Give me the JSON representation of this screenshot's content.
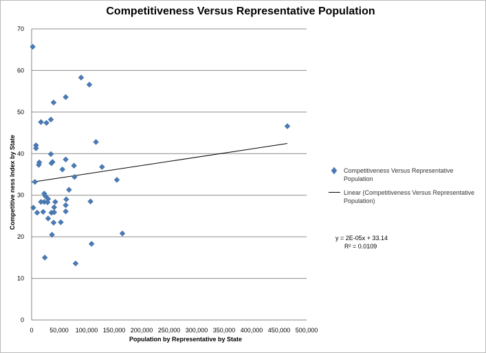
{
  "chart_data": {
    "type": "scatter",
    "title": "Competitiveness Versus Representative Population",
    "xlabel": "Population   by Representative  by State",
    "ylabel": "Competitive ness   Index  by State",
    "xlim": [
      0,
      500000
    ],
    "ylim": [
      0,
      70
    ],
    "x_ticks": [
      "0",
      "50,000",
      "100,000",
      "150,000",
      "200,000",
      "250,000",
      "300,000",
      "350,000",
      "400,000",
      "450,000",
      "500,000"
    ],
    "y_ticks": [
      "0",
      "10",
      "20",
      "30",
      "40",
      "50",
      "60",
      "70"
    ],
    "grid": "horizontal",
    "legend_position": "right",
    "series": [
      {
        "name": "Competitiveness Versus Representative Population",
        "marker": "diamond",
        "color": "#4a7ab5",
        "points": [
          [
            2000,
            65.7
          ],
          [
            90000,
            58.3
          ],
          [
            105000,
            56.6
          ],
          [
            62000,
            53.6
          ],
          [
            40000,
            52.3
          ],
          [
            35000,
            48.2
          ],
          [
            17000,
            47.6
          ],
          [
            27000,
            47.4
          ],
          [
            465000,
            46.6
          ],
          [
            117000,
            42.8
          ],
          [
            8000,
            42.0
          ],
          [
            8000,
            41.3
          ],
          [
            35000,
            39.9
          ],
          [
            62000,
            38.6
          ],
          [
            14000,
            37.9
          ],
          [
            13000,
            37.3
          ],
          [
            38000,
            38.0
          ],
          [
            36000,
            37.7
          ],
          [
            77000,
            37.1
          ],
          [
            128000,
            36.8
          ],
          [
            56000,
            36.2
          ],
          [
            78000,
            34.4
          ],
          [
            155000,
            33.7
          ],
          [
            6000,
            33.2
          ],
          [
            68000,
            31.3
          ],
          [
            23000,
            30.4
          ],
          [
            25000,
            29.8
          ],
          [
            30000,
            29.1
          ],
          [
            63000,
            29.0
          ],
          [
            43000,
            28.4
          ],
          [
            107000,
            28.5
          ],
          [
            17000,
            28.4
          ],
          [
            23000,
            28.4
          ],
          [
            29000,
            28.3
          ],
          [
            62000,
            27.6
          ],
          [
            41000,
            27.1
          ],
          [
            3000,
            27.0
          ],
          [
            21000,
            26.0
          ],
          [
            62000,
            26.1
          ],
          [
            10000,
            25.8
          ],
          [
            36000,
            25.8
          ],
          [
            41000,
            25.9
          ],
          [
            30000,
            24.4
          ],
          [
            53000,
            23.5
          ],
          [
            40000,
            23.4
          ],
          [
            165000,
            20.8
          ],
          [
            37000,
            20.5
          ],
          [
            109000,
            18.3
          ],
          [
            24000,
            15.0
          ],
          [
            80000,
            13.6
          ]
        ]
      }
    ],
    "trendline": {
      "name": "Linear (Competitiveness Versus Representative Population)",
      "type": "linear",
      "slope": 2e-05,
      "intercept": 33.14,
      "x_range": [
        0,
        465000
      ],
      "equation": "y = 2E-05x + 33.14",
      "r2": "R² = 0.0109"
    }
  }
}
